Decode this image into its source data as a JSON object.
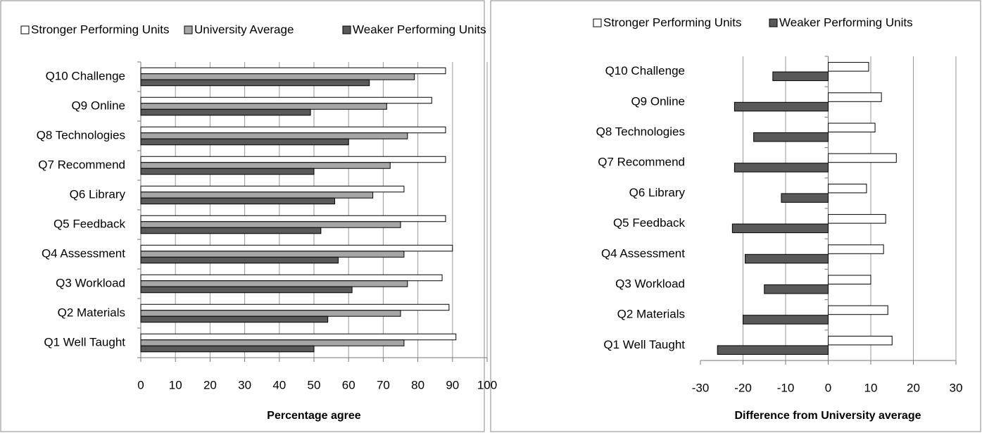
{
  "chart_data": [
    {
      "type": "bar",
      "orientation": "horizontal",
      "x_label": "Percentage agree",
      "categories": [
        "Q1 Well Taught",
        "Q2 Materials",
        "Q3 Workload",
        "Q4 Assessment",
        "Q5 Feedback",
        "Q6 Library",
        "Q7 Recommend",
        "Q8 Technologies",
        "Q9 Online",
        "Q10 Challenge"
      ],
      "series": [
        {
          "name": "Stronger Performing Units",
          "color": "#ffffff",
          "values": [
            91,
            89,
            87,
            90,
            88,
            76,
            88,
            88,
            84,
            88
          ]
        },
        {
          "name": "University Average",
          "color": "#a6a6a6",
          "values": [
            76,
            75,
            77,
            76,
            75,
            67,
            72,
            77,
            71,
            79
          ]
        },
        {
          "name": "Weaker Performing Units",
          "color": "#595959",
          "values": [
            50,
            54,
            61,
            57,
            52,
            56,
            50,
            60,
            49,
            66
          ]
        }
      ],
      "xlim": [
        0,
        100
      ],
      "xticks": [
        0,
        10,
        20,
        30,
        40,
        50,
        60,
        70,
        80,
        90,
        100
      ],
      "grid": true,
      "legend": "top"
    },
    {
      "type": "bar",
      "orientation": "horizontal",
      "x_label": "Difference from University average",
      "categories": [
        "Q1 Well Taught",
        "Q2 Materials",
        "Q3 Workload",
        "Q4 Assessment",
        "Q5 Feedback",
        "Q6 Library",
        "Q7 Recommend",
        "Q8 Technologies",
        "Q9 Online",
        "Q10 Challenge"
      ],
      "series": [
        {
          "name": "Stronger Performing Units",
          "color": "#ffffff",
          "values": [
            15,
            14,
            10,
            13,
            13.5,
            9,
            16,
            11,
            12.5,
            9.5
          ]
        },
        {
          "name": "Weaker Performing Units",
          "color": "#595959",
          "values": [
            -26,
            -20,
            -15,
            -19.5,
            -22.5,
            -11,
            -22,
            -17.5,
            -22,
            -13
          ]
        }
      ],
      "xlim": [
        -30,
        30
      ],
      "xticks": [
        -30,
        -20,
        -10,
        0,
        10,
        20,
        30
      ],
      "grid": true,
      "legend": "top"
    }
  ]
}
